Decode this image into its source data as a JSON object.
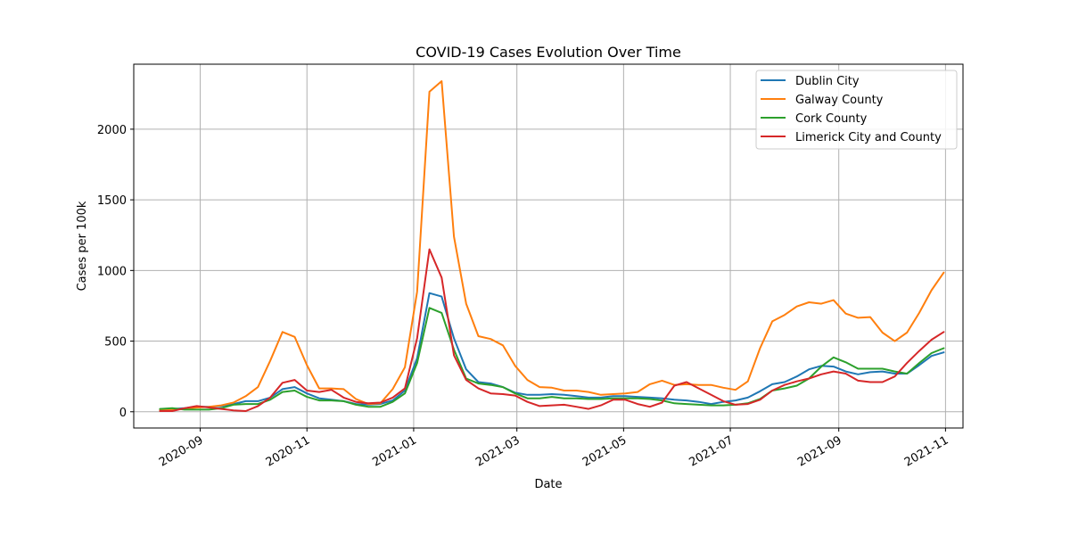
{
  "chart_data": {
    "type": "line",
    "title": "COVID-19 Cases Evolution Over Time",
    "xlabel": "Date",
    "ylabel": "Cases per 100k",
    "x_type": "date",
    "xlim": [
      "2020-07-25",
      "2021-11-11"
    ],
    "ylim": [
      -115,
      2460
    ],
    "x_ticks": [
      "2020-09-01",
      "2020-11-01",
      "2021-01-01",
      "2021-03-01",
      "2021-05-01",
      "2021-07-01",
      "2021-09-01",
      "2021-11-01"
    ],
    "x_tick_labels": [
      "2020-09",
      "2020-11",
      "2021-01",
      "2021-03",
      "2021-05",
      "2021-07",
      "2021-09",
      "2021-11"
    ],
    "y_ticks": [
      0,
      500,
      1000,
      1500,
      2000
    ],
    "y_tick_labels": [
      "0",
      "500",
      "1000",
      "1500",
      "2000"
    ],
    "grid": true,
    "legend_position": "top-right",
    "x": [
      "2020-08-09",
      "2020-08-16",
      "2020-08-23",
      "2020-08-30",
      "2020-09-06",
      "2020-09-13",
      "2020-09-20",
      "2020-09-27",
      "2020-10-04",
      "2020-10-11",
      "2020-10-18",
      "2020-10-25",
      "2020-11-01",
      "2020-11-08",
      "2020-11-15",
      "2020-11-22",
      "2020-11-29",
      "2020-12-06",
      "2020-12-13",
      "2020-12-20",
      "2020-12-27",
      "2021-01-03",
      "2021-01-10",
      "2021-01-17",
      "2021-01-24",
      "2021-01-31",
      "2021-02-07",
      "2021-02-14",
      "2021-02-21",
      "2021-02-28",
      "2021-03-07",
      "2021-03-14",
      "2021-03-21",
      "2021-03-28",
      "2021-04-04",
      "2021-04-11",
      "2021-04-18",
      "2021-04-25",
      "2021-05-02",
      "2021-05-09",
      "2021-05-16",
      "2021-05-23",
      "2021-05-30",
      "2021-06-06",
      "2021-06-13",
      "2021-06-20",
      "2021-06-27",
      "2021-07-04",
      "2021-07-11",
      "2021-07-18",
      "2021-07-25",
      "2021-08-01",
      "2021-08-08",
      "2021-08-15",
      "2021-08-22",
      "2021-08-29",
      "2021-09-05",
      "2021-09-12",
      "2021-09-19",
      "2021-09-26",
      "2021-10-03",
      "2021-10-10",
      "2021-10-17",
      "2021-10-24",
      "2021-10-31"
    ],
    "series": [
      {
        "name": "Dublin City",
        "color": "#1f77b4",
        "values": [
          15,
          20,
          25,
          35,
          35,
          40,
          55,
          75,
          75,
          100,
          160,
          175,
          130,
          95,
          85,
          75,
          55,
          50,
          55,
          80,
          150,
          380,
          840,
          815,
          520,
          300,
          210,
          200,
          175,
          135,
          120,
          120,
          125,
          120,
          110,
          100,
          100,
          110,
          110,
          105,
          100,
          95,
          85,
          80,
          70,
          55,
          70,
          80,
          100,
          145,
          195,
          210,
          250,
          300,
          325,
          320,
          285,
          265,
          280,
          285,
          270,
          270,
          330,
          395,
          420
        ]
      },
      {
        "name": "Galway County",
        "color": "#ff7f0e",
        "values": [
          10,
          15,
          20,
          30,
          35,
          45,
          65,
          110,
          175,
          360,
          565,
          530,
          330,
          165,
          165,
          160,
          90,
          55,
          60,
          160,
          315,
          850,
          2265,
          2340,
          1240,
          765,
          535,
          515,
          470,
          325,
          225,
          175,
          170,
          150,
          150,
          140,
          120,
          125,
          130,
          140,
          195,
          220,
          190,
          195,
          190,
          190,
          170,
          155,
          215,
          450,
          640,
          685,
          745,
          775,
          765,
          790,
          695,
          665,
          670,
          560,
          500,
          560,
          700,
          860,
          985
        ]
      },
      {
        "name": "Cork County",
        "color": "#2ca02c",
        "values": [
          20,
          25,
          15,
          15,
          15,
          25,
          50,
          55,
          55,
          85,
          140,
          150,
          105,
          80,
          80,
          75,
          50,
          35,
          35,
          70,
          130,
          345,
          735,
          700,
          440,
          235,
          200,
          190,
          175,
          130,
          95,
          95,
          105,
          95,
          95,
          90,
          90,
          95,
          95,
          95,
          90,
          80,
          60,
          55,
          50,
          45,
          45,
          50,
          60,
          90,
          150,
          165,
          185,
          235,
          320,
          385,
          350,
          305,
          305,
          305,
          285,
          270,
          345,
          415,
          450
        ]
      },
      {
        "name": "Limerick City and County",
        "color": "#d62728",
        "values": [
          5,
          5,
          25,
          40,
          30,
          20,
          10,
          5,
          40,
          100,
          205,
          225,
          150,
          140,
          155,
          100,
          70,
          60,
          65,
          100,
          165,
          520,
          1150,
          950,
          400,
          225,
          165,
          130,
          125,
          115,
          70,
          40,
          45,
          50,
          35,
          20,
          45,
          85,
          85,
          55,
          35,
          65,
          185,
          210,
          165,
          120,
          75,
          50,
          55,
          85,
          150,
          190,
          215,
          235,
          265,
          285,
          270,
          220,
          210,
          210,
          250,
          345,
          430,
          510,
          565
        ]
      }
    ]
  }
}
